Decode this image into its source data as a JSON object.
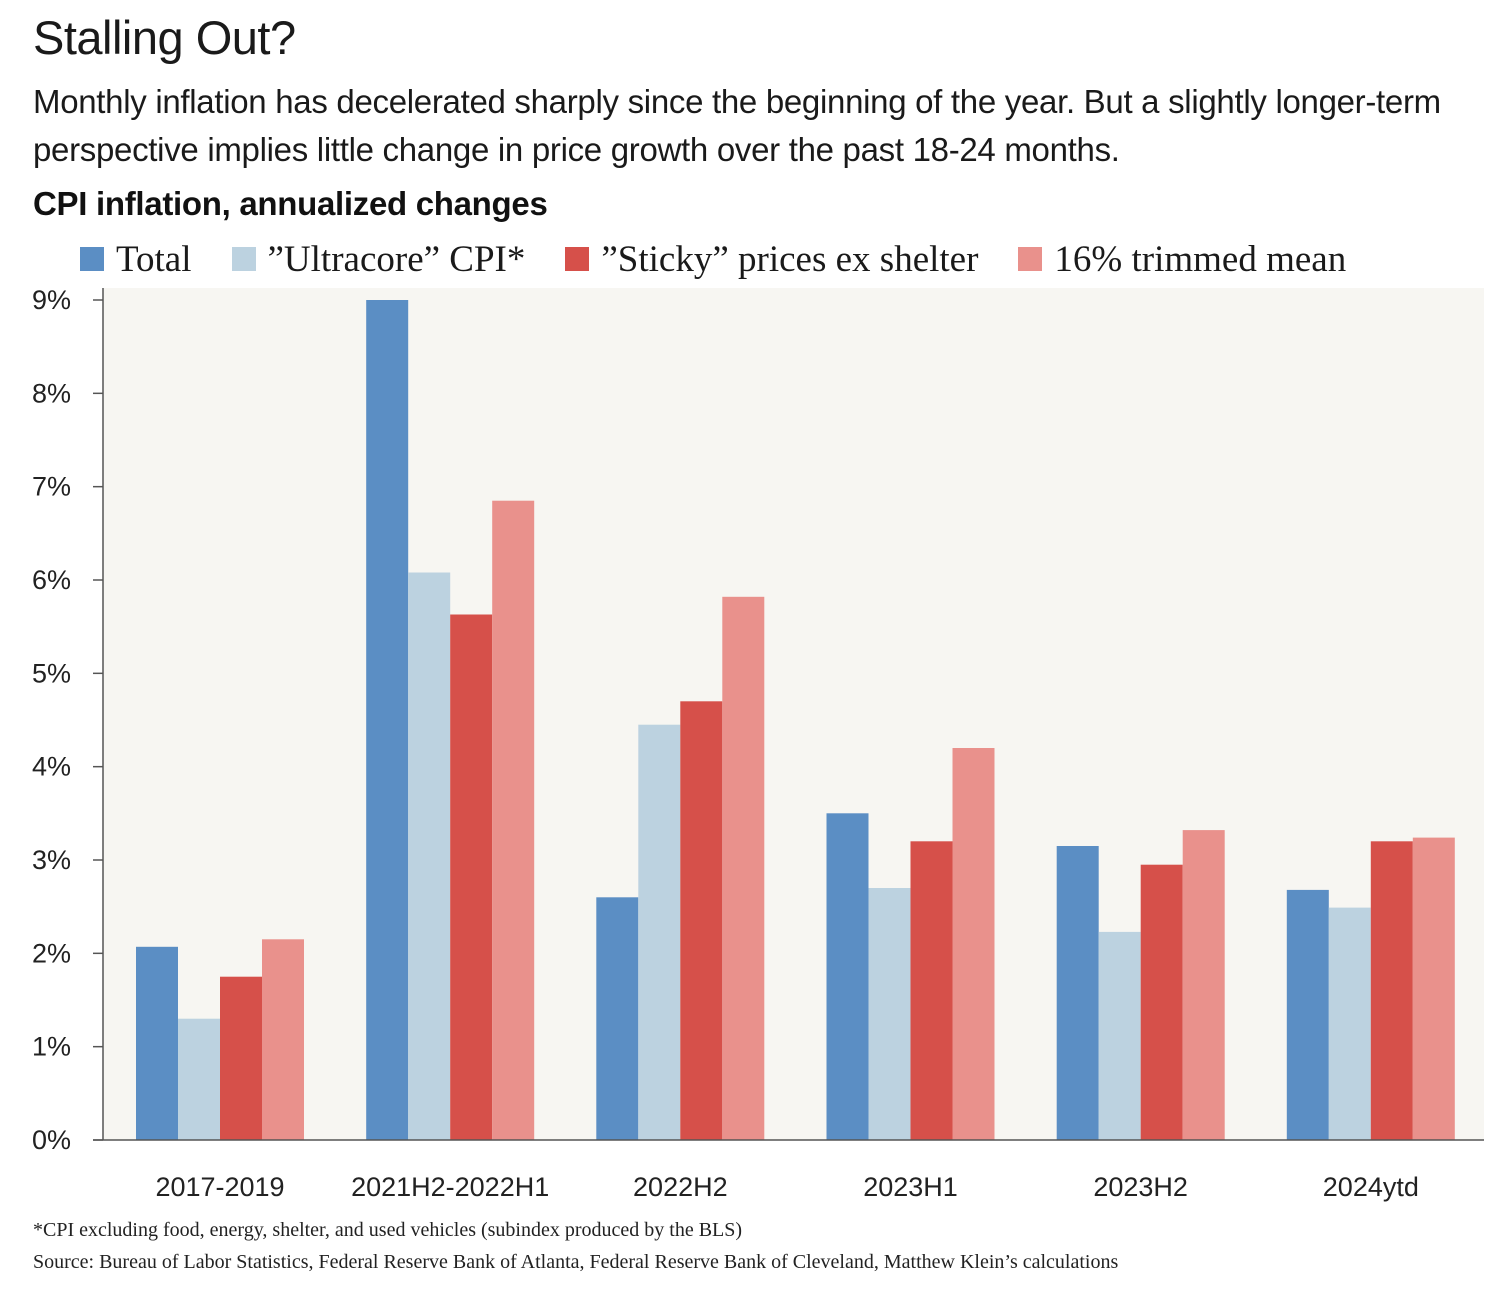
{
  "header": {
    "title": "Stalling Out?",
    "subtitle": "Monthly inflation has decelerated sharply since the beginning of the year. But a slightly longer-term perspective implies little change in price growth over the past 18-24 months.",
    "chart_heading": "CPI inflation, annualized changes"
  },
  "footer": {
    "footnote": "*CPI excluding food, energy, shelter, and used vehicles (subindex produced by the BLS)",
    "source": "Source: Bureau of Labor Statistics, Federal Reserve Bank of Atlanta, Federal Reserve Bank of Cleveland, Matthew Klein’s calculations"
  },
  "colors": {
    "plot_background": "#f7f6f2",
    "axis": "#555555",
    "tick_text": "#222222"
  },
  "chart_data": {
    "type": "bar",
    "title": "CPI inflation, annualized changes",
    "xlabel": "",
    "ylabel": "",
    "ylim": [
      0,
      9
    ],
    "yticks": [
      0,
      1,
      2,
      3,
      4,
      5,
      6,
      7,
      8,
      9
    ],
    "ytick_labels": [
      "0%",
      "1%",
      "2%",
      "3%",
      "4%",
      "5%",
      "6%",
      "7%",
      "8%",
      "9%"
    ],
    "grid": false,
    "legend_position": "top",
    "categories": [
      "2017-2019",
      "2021H2-2022H1",
      "2022H2",
      "2023H1",
      "2023H2",
      "2024ytd"
    ],
    "series": [
      {
        "name": "Total",
        "color": "#5b8ec4",
        "values": [
          2.07,
          9.0,
          2.6,
          3.5,
          3.15,
          2.68
        ]
      },
      {
        "name": "”Ultracore” CPI*",
        "color": "#bcd2e0",
        "values": [
          1.3,
          6.08,
          4.45,
          2.7,
          2.23,
          2.49
        ]
      },
      {
        "name": "”Sticky” prices ex shelter",
        "color": "#d6504a",
        "values": [
          1.75,
          5.63,
          4.7,
          3.2,
          2.95,
          3.2
        ]
      },
      {
        "name": "16% trimmed mean",
        "color": "#e9918c",
        "values": [
          2.15,
          6.85,
          5.82,
          4.2,
          3.32,
          3.24
        ]
      }
    ]
  }
}
